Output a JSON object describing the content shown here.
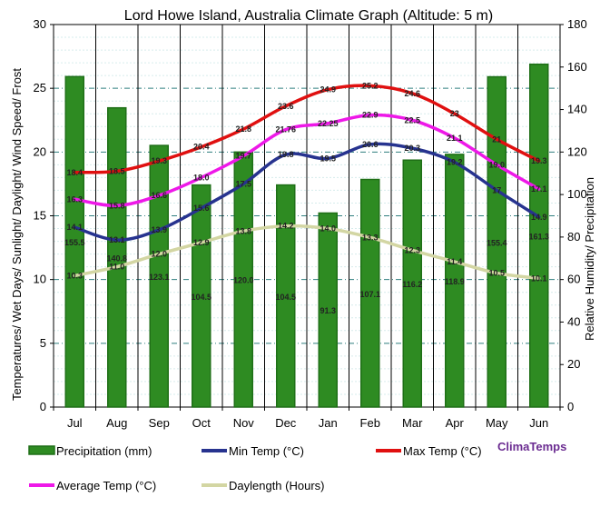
{
  "chart_data": {
    "type": "bar+line",
    "title": "Lord Howe Island, Australia Climate Graph (Altitude: 5 m)",
    "ylabel_left": "Temperatures/ Wet Days/ Sunlight/ Daylight/ Wind Speed/ Frost",
    "ylabel_right": "Relative Humidity/ Precipitation",
    "ylim_left": [
      0,
      30
    ],
    "ylim_right": [
      0,
      180
    ],
    "yticks_left": [
      "0",
      "5",
      "10",
      "15",
      "20",
      "25",
      "30"
    ],
    "yticks_right": [
      "0",
      "20",
      "40",
      "60",
      "80",
      "100",
      "120",
      "140",
      "160",
      "180"
    ],
    "categories": [
      "Jul",
      "Aug",
      "Sep",
      "Oct",
      "Nov",
      "Dec",
      "Jan",
      "Feb",
      "Mar",
      "Apr",
      "May",
      "Jun"
    ],
    "grid": true,
    "legend_position": "bottom",
    "brand": "ClimaTemps",
    "series": [
      {
        "name": "Precipitation (mm)",
        "kind": "bar",
        "axis": "right",
        "color": "#2e8b22",
        "values": [
          155.5,
          140.8,
          123.1,
          104.5,
          120.0,
          104.5,
          91.3,
          107.1,
          116.2,
          118.9,
          155.4,
          161.3
        ],
        "labels": [
          "155.5",
          "140.8",
          "123.1",
          "104.5",
          "120.0",
          "104.5",
          "91.3",
          "107.1",
          "116.2",
          "118.9",
          "155.4",
          "161.3"
        ]
      },
      {
        "name": "Min Temp (°C)",
        "kind": "line",
        "axis": "left",
        "color": "#27338f",
        "values": [
          14.1,
          13.1,
          13.9,
          15.6,
          17.5,
          19.8,
          19.5,
          20.6,
          20.3,
          19.2,
          17.0,
          14.9
        ],
        "labels": [
          "14.1",
          "13.1",
          "13.9",
          "15.6",
          "17.5",
          "19.8",
          "19.5",
          "20.6",
          "20.3",
          "19.2",
          "17",
          "14.9"
        ]
      },
      {
        "name": "Max Temp (°C)",
        "kind": "line",
        "axis": "left",
        "color": "#e01010",
        "values": [
          18.4,
          18.5,
          19.3,
          20.4,
          21.8,
          23.6,
          24.9,
          25.2,
          24.6,
          23.0,
          21.0,
          19.3
        ],
        "labels": [
          "18.4",
          "18.5",
          "19.3",
          "20.4",
          "21.8",
          "23.6",
          "24.9",
          "25.2",
          "24.6",
          "23",
          "21",
          "19.3"
        ]
      },
      {
        "name": "Average Temp (°C)",
        "kind": "line",
        "axis": "left",
        "color": "#ee18e8",
        "values": [
          16.3,
          15.8,
          16.6,
          18.0,
          19.7,
          21.76,
          22.25,
          22.9,
          22.5,
          21.1,
          19.0,
          17.1
        ],
        "labels": [
          "16.3",
          "15.8",
          "16.6",
          "18.0",
          "19.7",
          "21.76",
          "22.25",
          "22.9",
          "22.5",
          "21.1",
          "19.0",
          "17.1"
        ]
      },
      {
        "name": "Daylength (Hours)",
        "kind": "line",
        "axis": "left",
        "color": "#d3d6a3",
        "values": [
          10.3,
          11.0,
          12.0,
          12.9,
          13.8,
          14.2,
          14.0,
          13.3,
          12.3,
          11.4,
          10.5,
          10.1
        ],
        "labels": [
          "10.3",
          "11.0",
          "12.0",
          "12.9",
          "13.8",
          "14.2",
          "14.0",
          "13.3",
          "12.3",
          "11.4",
          "10.5",
          "10.1"
        ]
      }
    ]
  }
}
